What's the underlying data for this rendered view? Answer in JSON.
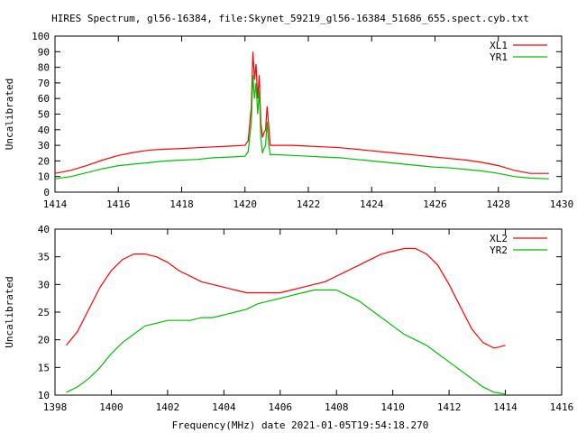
{
  "title": "HIRES Spectrum, gl56-16384, file:Skynet_59219_gl56-16384_51686_655.spect.cyb.txt",
  "xlabel": "Frequency(MHz) date 2021-01-05T19:54:18.270",
  "chart_data": [
    {
      "type": "line",
      "ylabel": "Uncalibrated",
      "xlim": [
        1414,
        1430
      ],
      "ylim": [
        0,
        100
      ],
      "xticks": [
        1414,
        1416,
        1418,
        1420,
        1422,
        1424,
        1426,
        1428,
        1430
      ],
      "yticks": [
        0,
        10,
        20,
        30,
        40,
        50,
        60,
        70,
        80,
        90,
        100
      ],
      "legend": "top-right",
      "series": [
        {
          "name": "XL1",
          "color": "#ff0000",
          "x": [
            1414.0,
            1414.5,
            1415.0,
            1415.5,
            1416.0,
            1416.5,
            1417.0,
            1417.5,
            1418.0,
            1418.5,
            1419.0,
            1419.5,
            1420.0,
            1420.1,
            1420.2,
            1420.25,
            1420.3,
            1420.35,
            1420.4,
            1420.45,
            1420.5,
            1420.55,
            1420.6,
            1420.65,
            1420.7,
            1420.75,
            1420.8,
            1420.9,
            1421.0,
            1421.5,
            1422.0,
            1422.5,
            1423.0,
            1423.5,
            1424.0,
            1424.5,
            1425.0,
            1425.5,
            1426.0,
            1426.5,
            1427.0,
            1427.5,
            1428.0,
            1428.5,
            1429.0,
            1429.6
          ],
          "y": [
            12,
            14,
            17,
            20.5,
            23.5,
            25.5,
            27,
            27.5,
            28,
            28.5,
            29,
            29.5,
            30,
            33,
            55,
            90,
            72,
            82,
            60,
            75,
            45,
            35,
            38,
            40,
            55,
            42,
            30,
            30,
            30,
            30,
            29.5,
            29,
            28.5,
            27.5,
            26.5,
            25.5,
            24.5,
            23.5,
            22.5,
            21.5,
            20.5,
            19,
            17,
            14,
            12,
            12
          ]
        },
        {
          "name": "YR1",
          "color": "#00c000",
          "x": [
            1414.0,
            1414.5,
            1415.0,
            1415.5,
            1416.0,
            1416.5,
            1417.0,
            1417.5,
            1418.0,
            1418.5,
            1419.0,
            1419.5,
            1420.0,
            1420.1,
            1420.2,
            1420.25,
            1420.3,
            1420.35,
            1420.4,
            1420.45,
            1420.5,
            1420.55,
            1420.6,
            1420.65,
            1420.7,
            1420.75,
            1420.8,
            1420.9,
            1421.0,
            1421.5,
            1422.0,
            1422.5,
            1423.0,
            1423.5,
            1424.0,
            1424.5,
            1425.0,
            1425.5,
            1426.0,
            1426.5,
            1427.0,
            1427.5,
            1428.0,
            1428.5,
            1429.0,
            1429.6
          ],
          "y": [
            8.5,
            10,
            12.5,
            15,
            17,
            18,
            19,
            20,
            20.5,
            21,
            22,
            22.5,
            23,
            26,
            45,
            75,
            60,
            70,
            50,
            65,
            35,
            25,
            28,
            30,
            45,
            30,
            24,
            24,
            24,
            23.5,
            23,
            22.5,
            22,
            21,
            20,
            19,
            18,
            17,
            16,
            15.5,
            14.5,
            13.5,
            12,
            10,
            9,
            8.5
          ]
        }
      ]
    },
    {
      "type": "line",
      "ylabel": "Uncalibrated",
      "xlim": [
        1398,
        1416
      ],
      "ylim": [
        10,
        40
      ],
      "xticks": [
        1398,
        1400,
        1402,
        1404,
        1406,
        1408,
        1410,
        1412,
        1414,
        1416
      ],
      "yticks": [
        10,
        15,
        20,
        25,
        30,
        35,
        40
      ],
      "legend": "top-right",
      "series": [
        {
          "name": "XL2",
          "color": "#ff0000",
          "x": [
            1398.4,
            1398.8,
            1399.2,
            1399.6,
            1400.0,
            1400.4,
            1400.8,
            1401.2,
            1401.6,
            1402.0,
            1402.4,
            1402.8,
            1403.2,
            1403.6,
            1404.0,
            1404.4,
            1404.8,
            1405.2,
            1405.6,
            1406.0,
            1406.4,
            1406.8,
            1407.2,
            1407.6,
            1408.0,
            1408.4,
            1408.8,
            1409.2,
            1409.6,
            1410.0,
            1410.4,
            1410.8,
            1411.2,
            1411.6,
            1412.0,
            1412.4,
            1412.8,
            1413.2,
            1413.6,
            1414.0
          ],
          "y": [
            19,
            21.5,
            25.5,
            29.5,
            32.5,
            34.5,
            35.5,
            35.5,
            35,
            34,
            32.5,
            31.5,
            30.5,
            30,
            29.5,
            29,
            28.5,
            28.5,
            28.5,
            28.5,
            29,
            29.5,
            30,
            30.5,
            31.5,
            32.5,
            33.5,
            34.5,
            35.5,
            36,
            36.5,
            36.5,
            35.5,
            33.5,
            30,
            26,
            22,
            19.5,
            18.5,
            19
          ]
        },
        {
          "name": "YR2",
          "color": "#00c000",
          "x": [
            1398.4,
            1398.8,
            1399.2,
            1399.6,
            1400.0,
            1400.4,
            1400.8,
            1401.2,
            1401.6,
            1402.0,
            1402.4,
            1402.8,
            1403.2,
            1403.6,
            1404.0,
            1404.4,
            1404.8,
            1405.2,
            1405.6,
            1406.0,
            1406.4,
            1406.8,
            1407.2,
            1407.6,
            1408.0,
            1408.4,
            1408.8,
            1409.2,
            1409.6,
            1410.0,
            1410.4,
            1410.8,
            1411.2,
            1411.6,
            1412.0,
            1412.4,
            1412.8,
            1413.2,
            1413.6,
            1414.0
          ],
          "y": [
            10.5,
            11.5,
            13,
            15,
            17.5,
            19.5,
            21,
            22.5,
            23,
            23.5,
            23.5,
            23.5,
            24,
            24,
            24.5,
            25,
            25.5,
            26.5,
            27,
            27.5,
            28,
            28.5,
            29,
            29,
            29,
            28,
            27,
            25.5,
            24,
            22.5,
            21,
            20,
            19,
            17.5,
            16,
            14.5,
            13,
            11.5,
            10.5,
            10.2
          ]
        }
      ]
    }
  ]
}
